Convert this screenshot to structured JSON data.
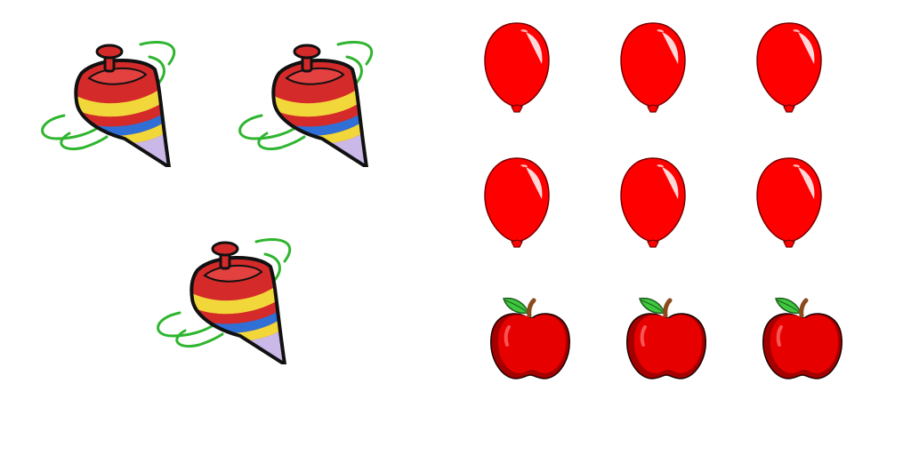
{
  "left_group": {
    "item": "spinning-top",
    "count": 3,
    "colors": {
      "body_red": "#d42a2a",
      "stripe_yellow": "#f2d73a",
      "stripe_blue": "#2f6fd6",
      "tip_lilac": "#c9b8e8",
      "swirl_green": "#2fb52f",
      "outline": "#111111"
    }
  },
  "right_group": {
    "rows": [
      {
        "item": "balloon",
        "count": 3
      },
      {
        "item": "balloon",
        "count": 3
      },
      {
        "item": "apple",
        "count": 3
      }
    ],
    "colors": {
      "balloon_red": "#ff0000",
      "apple_red": "#e60000",
      "apple_shadow": "#a30000",
      "leaf_green": "#3ec83e",
      "stem_brown": "#8b4a1c"
    }
  }
}
